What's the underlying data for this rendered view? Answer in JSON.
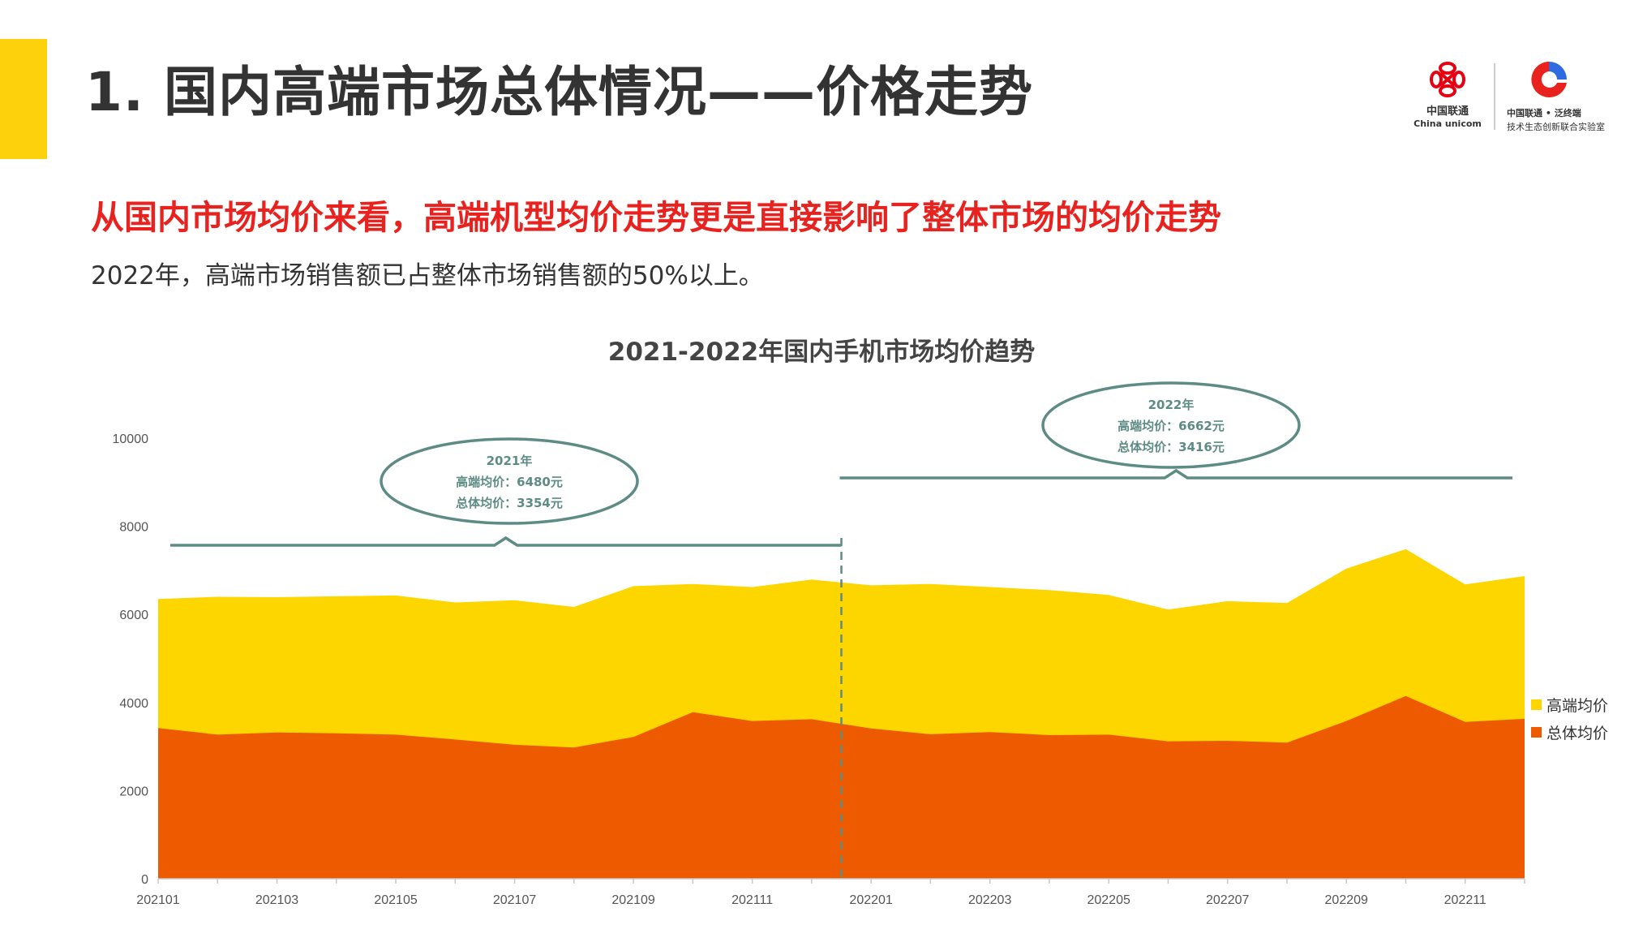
{
  "slide": {
    "title": "1. 国内高端市场总体情况——价格走势",
    "subheading": "从国内市场均价来看，高端机型均价走势更是直接影响了整体市场的均价走势",
    "description": "2022年，高端市场销售额已占整体市场销售额的50%以上。"
  },
  "logo": {
    "brand_cn": "中国联通",
    "brand_en": "China unicom",
    "lab_line1": "中国联通 • 泛终端",
    "lab_line2": "技术生态创新联合实验室"
  },
  "colors": {
    "accent": "#FDD20C",
    "subheading": "#E8231F",
    "highend_area": "#FDD600",
    "overall_area": "#EE5A00",
    "annotation": "#5E8C85"
  },
  "chart_data": {
    "type": "area",
    "title": "2021-2022年国内手机市场均价趋势",
    "xlabel": "",
    "ylabel": "",
    "ylim": [
      0,
      10000
    ],
    "yticks": [
      0,
      2000,
      4000,
      6000,
      8000,
      10000
    ],
    "grid": false,
    "legend_position": "right",
    "x": [
      "202101",
      "202102",
      "202103",
      "202104",
      "202105",
      "202106",
      "202107",
      "202108",
      "202109",
      "202110",
      "202111",
      "202112",
      "202201",
      "202202",
      "202203",
      "202204",
      "202205",
      "202206",
      "202207",
      "202208",
      "202209",
      "202210",
      "202211",
      "202212"
    ],
    "xtick_labels": [
      "202101",
      "202103",
      "202105",
      "202107",
      "202109",
      "202111",
      "202201",
      "202203",
      "202205",
      "202207",
      "202209",
      "202211"
    ],
    "series": [
      {
        "name": "高端均价",
        "color": "#FDD600",
        "values": [
          6350,
          6400,
          6390,
          6410,
          6430,
          6270,
          6320,
          6170,
          6640,
          6690,
          6620,
          6790,
          6660,
          6690,
          6620,
          6550,
          6440,
          6110,
          6300,
          6260,
          7040,
          7480,
          6680,
          6870
        ]
      },
      {
        "name": "总体均价",
        "color": "#EE5A00",
        "values": [
          3420,
          3270,
          3320,
          3300,
          3270,
          3160,
          3040,
          2980,
          3220,
          3780,
          3580,
          3620,
          3410,
          3280,
          3330,
          3260,
          3270,
          3120,
          3130,
          3090,
          3580,
          4150,
          3560,
          3630
        ]
      }
    ],
    "annotations": [
      {
        "period": "2021",
        "year": "2021年",
        "highend": "高端均价：6480元",
        "overall": "总体均价：3354元",
        "from": "202101",
        "to": "202112"
      },
      {
        "period": "2022",
        "year": "2022年",
        "highend": "高端均价：6662元",
        "overall": "总体均价：3416元",
        "from": "202201",
        "to": "202212"
      }
    ]
  }
}
